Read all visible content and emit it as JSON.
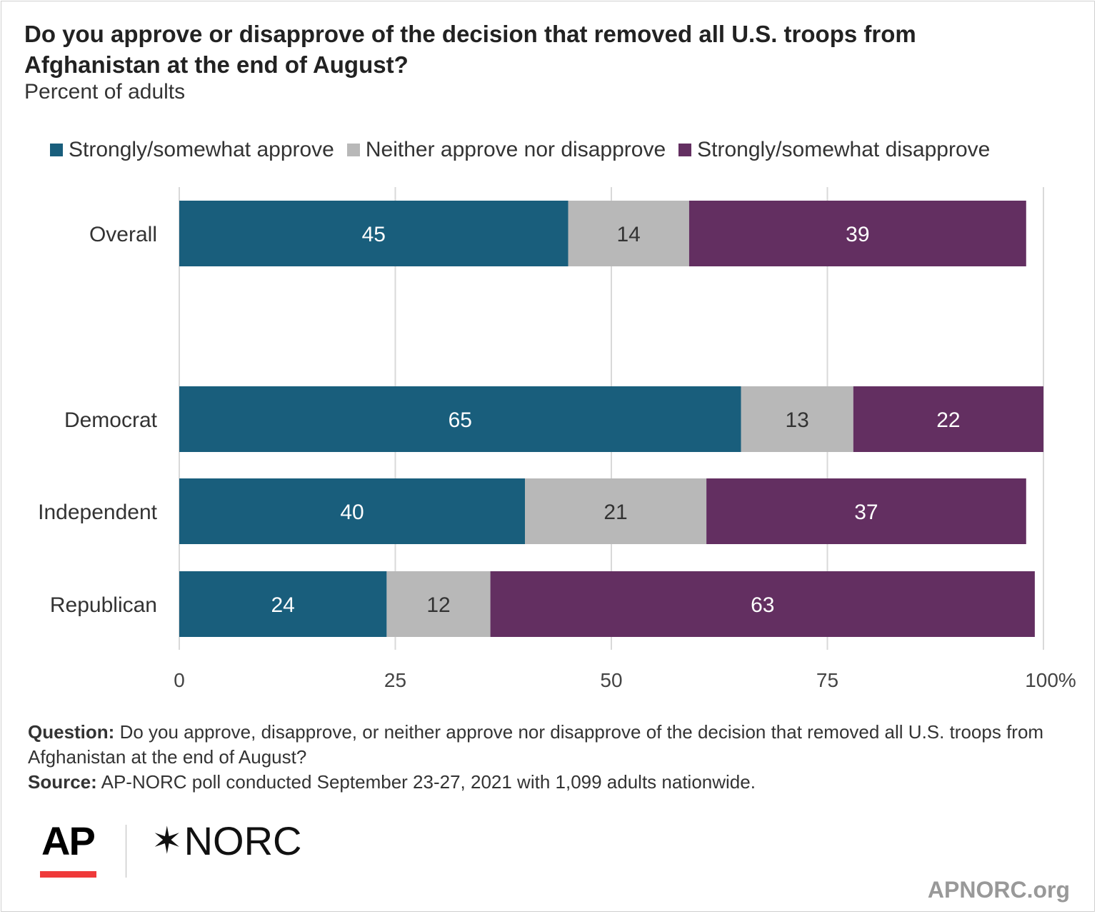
{
  "title": "Do you approve or disapprove of the decision that removed all U.S. troops from Afghanistan at the end of August?",
  "subtitle": "Percent of adults",
  "colors": {
    "approve": "#195e7c",
    "neither": "#b8b8b8",
    "disapprove": "#632f61",
    "grid": "#d9d9d9",
    "label_dark_bg": "#ffffff",
    "label_light_bg": "#333333"
  },
  "chart_data": {
    "type": "bar",
    "orientation": "horizontal",
    "stacked": true,
    "categories": [
      "Overall",
      "Democrat",
      "Independent",
      "Republican"
    ],
    "series": [
      {
        "name": "Strongly/somewhat approve",
        "values": [
          45,
          65,
          40,
          24
        ],
        "color": "#195e7c"
      },
      {
        "name": "Neither approve nor disapprove",
        "values": [
          14,
          13,
          21,
          12
        ],
        "color": "#b8b8b8"
      },
      {
        "name": "Strongly/somewhat disapprove",
        "values": [
          39,
          22,
          37,
          63
        ],
        "color": "#632f61"
      }
    ],
    "xlim": [
      0,
      100
    ],
    "xticks": [
      "0",
      "25",
      "50",
      "75",
      "100%"
    ],
    "grid": true,
    "legend": "top"
  },
  "notes": {
    "question_label": "Question:",
    "question_text": "Do you approve, disapprove, or neither approve nor disapprove of the decision that removed all U.S. troops from Afghanistan at the end of August?",
    "source_label": "Source:",
    "source_text": "AP-NORC poll conducted September 23-27, 2021 with 1,099 adults nationwide."
  },
  "logos": {
    "ap": "AP",
    "norc_star": "✶",
    "norc": "NORC",
    "site": "APNORC.org"
  }
}
